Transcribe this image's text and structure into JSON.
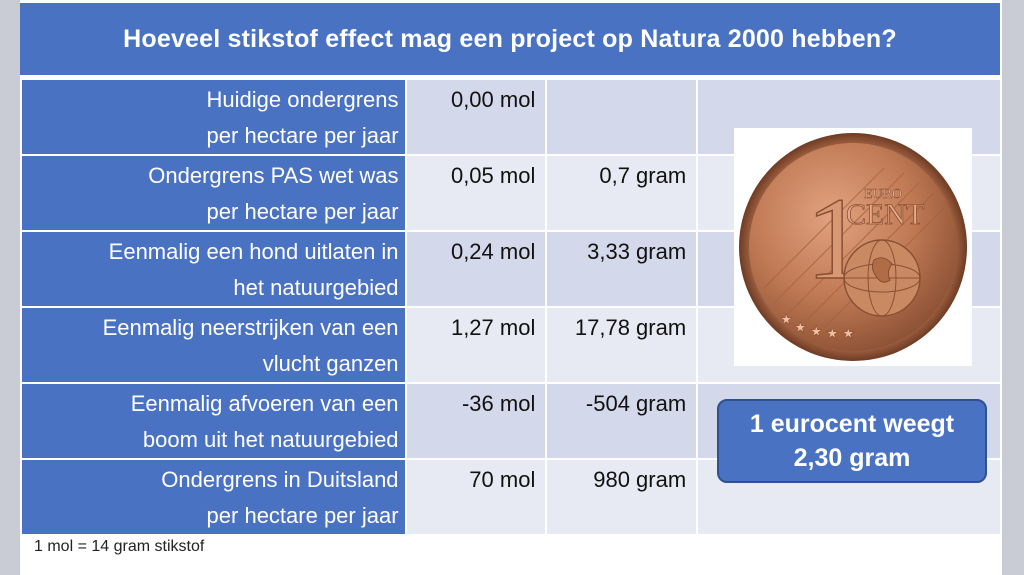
{
  "title": "Hoeveel stikstof effect mag een project op Natura 2000 hebben?",
  "rows": [
    {
      "label_line1": "Huidige ondergrens",
      "label_line2": "per hectare per jaar",
      "mol": "0,00 mol",
      "gram": ""
    },
    {
      "label_line1": "Ondergrens PAS wet was",
      "label_line2": "per hectare per jaar",
      "mol": "0,05 mol",
      "gram": "0,7 gram"
    },
    {
      "label_line1": "Eenmalig een hond uitlaten in",
      "label_line2": "het natuurgebied",
      "mol": "0,24 mol",
      "gram": "3,33 gram"
    },
    {
      "label_line1": "Eenmalig neerstrijken van een",
      "label_line2": "vlucht ganzen",
      "mol": "1,27 mol",
      "gram": "17,78 gram"
    },
    {
      "label_line1": "Eenmalig afvoeren van een",
      "label_line2": "boom uit het natuurgebied",
      "mol": "-36 mol",
      "gram": "-504 gram"
    },
    {
      "label_line1": "Ondergrens in Duitsland",
      "label_line2": "per hectare per jaar",
      "mol": "70 mol",
      "gram": "980 gram"
    }
  ],
  "coin": {
    "text_euro": "EURO",
    "text_cent": "CENT",
    "digit": "1"
  },
  "callout": {
    "line1": "1 eurocent weegt",
    "line2": "2,30 gram"
  },
  "footnote": "1 mol = 14 gram stikstof",
  "colors": {
    "header_blue": "#4a72c2",
    "cell_light": "#d3d8ea",
    "cell_lighter": "#e8eaf3",
    "copper": "#b8734f"
  }
}
